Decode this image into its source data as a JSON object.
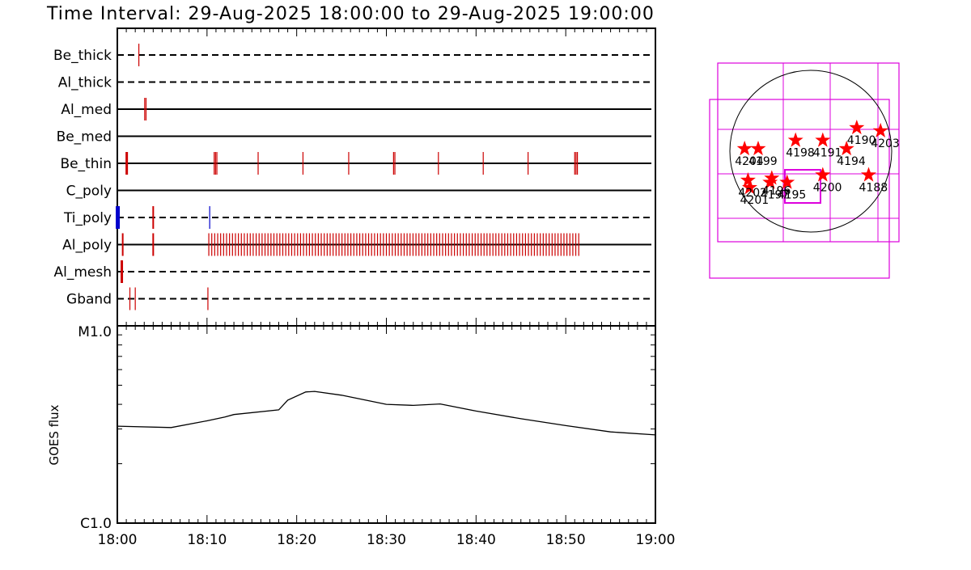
{
  "header": {
    "title": "Time Interval: 29-Aug-2025 18:00:00 to 29-Aug-2025 19:00:00"
  },
  "colors": {
    "event_red": "#cc0000",
    "event_blue": "#0000cc",
    "star_red": "#ff0000",
    "fov_magenta": "#dd00dd",
    "axis": "#000000"
  },
  "chart_data": [
    {
      "type": "event-timeline",
      "x_range_minutes": [
        0,
        60
      ],
      "channels": [
        {
          "name": "Be_thick",
          "style": "dashed",
          "events": [
            {
              "t": 2.4,
              "c": "red"
            }
          ]
        },
        {
          "name": "Al_thick",
          "style": "dashed",
          "events": []
        },
        {
          "name": "Al_med",
          "style": "solid",
          "events": [
            {
              "t": 3.05,
              "c": "red"
            },
            {
              "t": 3.2,
              "c": "red"
            }
          ]
        },
        {
          "name": "Be_med",
          "style": "solid",
          "events": []
        },
        {
          "name": "Be_thin",
          "style": "solid",
          "events": [
            {
              "t": 1.05,
              "c": "red",
              "w": 3
            },
            {
              "t": 10.8,
              "c": "red"
            },
            {
              "t": 10.95,
              "c": "red"
            },
            {
              "t": 11.1,
              "c": "red"
            },
            {
              "t": 15.7,
              "c": "red"
            },
            {
              "t": 20.7,
              "c": "red"
            },
            {
              "t": 25.8,
              "c": "red"
            },
            {
              "t": 30.8,
              "c": "red"
            },
            {
              "t": 30.95,
              "c": "red"
            },
            {
              "t": 35.8,
              "c": "red"
            },
            {
              "t": 40.8,
              "c": "red"
            },
            {
              "t": 45.8,
              "c": "red"
            },
            {
              "t": 51.0,
              "c": "red"
            },
            {
              "t": 51.15,
              "c": "red"
            },
            {
              "t": 51.3,
              "c": "red"
            }
          ]
        },
        {
          "name": "C_poly",
          "style": "solid",
          "events": []
        },
        {
          "name": "Ti_poly",
          "style": "dashed",
          "events": [
            {
              "t": 0.05,
              "c": "blue",
              "w": 5
            },
            {
              "t": 4.0,
              "c": "red",
              "w": 2
            },
            {
              "t": 10.3,
              "c": "blue"
            }
          ]
        },
        {
          "name": "Al_poly",
          "style": "solid",
          "events": [
            {
              "t": 0.6,
              "c": "red",
              "w": 2
            },
            {
              "t": 4.0,
              "c": "red",
              "w": 2
            },
            {
              "seq": [
                10.2,
                51.5,
                0.33
              ],
              "c": "red"
            }
          ]
        },
        {
          "name": "Al_mesh",
          "style": "dashed",
          "events": [
            {
              "t": 0.5,
              "c": "red",
              "w": 3
            }
          ]
        },
        {
          "name": "Gband",
          "style": "dashed",
          "events": [
            {
              "t": 1.4,
              "c": "red"
            },
            {
              "t": 2.0,
              "c": "red"
            },
            {
              "t": 10.1,
              "c": "red"
            }
          ]
        }
      ]
    },
    {
      "type": "line",
      "ylabel": "GOES flux",
      "y_ticks": [
        "M1.0",
        "C1.0"
      ],
      "log_y": true,
      "ylim": [
        1e-06,
        1e-05
      ],
      "x_ticks": [
        "18:00",
        "18:10",
        "18:20",
        "18:30",
        "18:40",
        "18:50",
        "19:00"
      ],
      "x_minutes": [
        0,
        6,
        10,
        12,
        13,
        18,
        19,
        21,
        22,
        25,
        30,
        33,
        36,
        40,
        45,
        50,
        55,
        60
      ],
      "flux": [
        3.1e-06,
        3.05e-06,
        3.3e-06,
        3.45e-06,
        3.55e-06,
        3.75e-06,
        4.2e-06,
        4.62e-06,
        4.65e-06,
        4.45e-06,
        4e-06,
        3.95e-06,
        4.02e-06,
        3.7e-06,
        3.38e-06,
        3.12e-06,
        2.9e-06,
        2.8e-06
      ]
    },
    {
      "type": "scatter",
      "name": "active-region-map",
      "regions": [
        {
          "label": "4199",
          "x": 0.2,
          "y": 0.3
        },
        {
          "label": "4204",
          "x": 0.12,
          "y": 0.3
        },
        {
          "label": "4198",
          "x": 0.42,
          "y": 0.22
        },
        {
          "label": "4191",
          "x": 0.58,
          "y": 0.22
        },
        {
          "label": "4190",
          "x": 0.78,
          "y": 0.1
        },
        {
          "label": "4203",
          "x": 0.92,
          "y": 0.13
        },
        {
          "label": "4194",
          "x": 0.72,
          "y": 0.3
        },
        {
          "label": "4188",
          "x": 0.85,
          "y": 0.55
        },
        {
          "label": "4200",
          "x": 0.58,
          "y": 0.55
        },
        {
          "label": "4195",
          "x": 0.37,
          "y": 0.62
        },
        {
          "label": "4197",
          "x": 0.27,
          "y": 0.62
        },
        {
          "label": "4196",
          "x": 0.28,
          "y": 0.58
        },
        {
          "label": "4201",
          "x": 0.15,
          "y": 0.67
        },
        {
          "label": "4202",
          "x": 0.14,
          "y": 0.6
        }
      ]
    }
  ]
}
